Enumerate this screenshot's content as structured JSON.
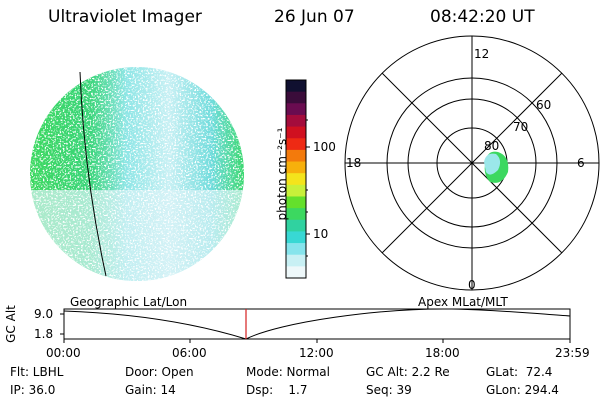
{
  "header": {
    "title": "Ultraviolet Imager",
    "date": "26 Jun 07",
    "time": "08:42:20 UT"
  },
  "colorbar": {
    "label": "photon cm⁻²s⁻¹",
    "ticks": [
      "100",
      "10"
    ],
    "colors": [
      "#101030",
      "#3a0c3a",
      "#6a0c50",
      "#a40c3c",
      "#d01020",
      "#ee2a14",
      "#f37a0c",
      "#f7b00c",
      "#f4e41c",
      "#c8f03a",
      "#64e02c",
      "#3cd860",
      "#30d2a0",
      "#38d8d4",
      "#86e4ec",
      "#c8f0f4",
      "#eef8fa"
    ]
  },
  "polar": {
    "labels": {
      "top": "12",
      "bottom": "0",
      "left": "18",
      "right": "6"
    },
    "lat_labels": [
      "60",
      "70",
      "80"
    ]
  },
  "timeline": {
    "left_label": "Geographic Lat/Lon",
    "right_label": "Apex MLat/MLT",
    "y_axis_label": "GC Alt",
    "y_ticks": [
      "9.0",
      "1.8"
    ],
    "x_ticks": [
      "00:00",
      "06:00",
      "12:00",
      "18:00",
      "23:59"
    ]
  },
  "info": {
    "row1": [
      "Flt: LBHL",
      "Door: Open",
      "Mode: Normal",
      "GC Alt: 2.2 Re",
      "GLat:  72.4"
    ],
    "row2": [
      "IP: 36.0",
      "Gain: 14",
      "Dsp:    1.7",
      "Seq: 39",
      "GLon: 294.4"
    ]
  }
}
